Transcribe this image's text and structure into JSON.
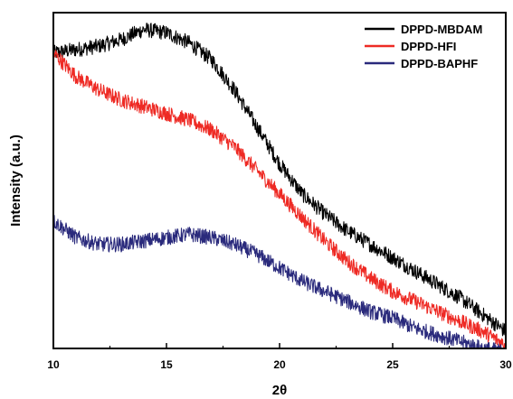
{
  "chart_data": {
    "type": "line",
    "xlabel": "2θ",
    "ylabel": "Intensity (a.u.)",
    "xlim": [
      10,
      30
    ],
    "ylim": [
      0,
      100
    ],
    "x_ticks": [
      "10",
      "15",
      "20",
      "25",
      "30"
    ],
    "y_ticks": [],
    "grid": false,
    "legend_position": "top-right",
    "series": [
      {
        "name": "DPPD-MBDAM",
        "color": "#000000",
        "x": [
          10,
          11,
          12,
          13,
          14,
          15,
          16,
          17,
          18,
          19,
          20,
          21,
          22,
          23,
          24,
          25,
          26,
          27,
          28,
          29,
          30
        ],
        "y": [
          88,
          89,
          90,
          92,
          95,
          94,
          91,
          86,
          77,
          66,
          55,
          46,
          40,
          35,
          31,
          27,
          23,
          19,
          15,
          10,
          5
        ]
      },
      {
        "name": "DPPD-HFI",
        "color": "#ee2a24",
        "x": [
          10,
          11,
          12,
          13,
          14,
          15,
          16,
          17,
          18,
          19,
          20,
          21,
          22,
          23,
          24,
          25,
          26,
          27,
          28,
          29,
          30
        ],
        "y": [
          88,
          81,
          77,
          74,
          72,
          70,
          68,
          65,
          60,
          53,
          46,
          39,
          32,
          26,
          21,
          17,
          14,
          11,
          8,
          5,
          1
        ]
      },
      {
        "name": "DPPD-BAPHF",
        "color": "#2a2a7c",
        "x": [
          10,
          11,
          12,
          13,
          14,
          15,
          16,
          17,
          18,
          19,
          20,
          21,
          22,
          23,
          24,
          25,
          26,
          27,
          28,
          29,
          30
        ],
        "y": [
          38,
          33,
          31,
          31,
          32,
          33,
          34,
          33,
          31,
          28,
          24,
          20,
          17,
          14,
          11,
          9,
          6,
          4,
          2,
          0,
          -1
        ]
      }
    ]
  }
}
